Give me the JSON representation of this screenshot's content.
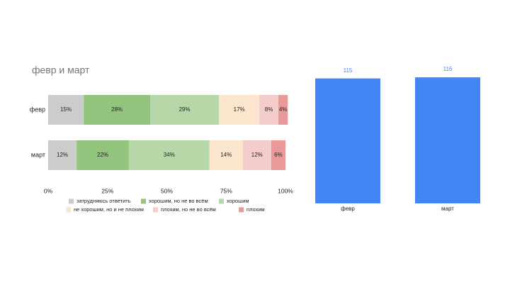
{
  "chart_data": [
    {
      "type": "stacked-barh",
      "title": "февр и март",
      "categories": [
        "февр",
        "март"
      ],
      "series": [
        {
          "name": "затрудняюсь ответить",
          "color": "#cccccc",
          "values": [
            15,
            12
          ],
          "value_labels": [
            "15%",
            "12%"
          ]
        },
        {
          "name": "хорошим, но не во всём",
          "color": "#93c47d",
          "values": [
            28,
            22
          ],
          "value_labels": [
            "28%",
            "22%"
          ]
        },
        {
          "name": "хорошим",
          "color": "#b6d7a8",
          "values": [
            29,
            34
          ],
          "value_labels": [
            "29%",
            "34%"
          ]
        },
        {
          "name": "не хорошим, но и не плохим",
          "color": "#fce5cd",
          "values": [
            17,
            14
          ],
          "value_labels": [
            "17%",
            "14%"
          ]
        },
        {
          "name": "плохим, но не во всём",
          "color": "#f4cccc",
          "values": [
            8,
            12
          ],
          "value_labels": [
            "8%",
            "12%"
          ]
        },
        {
          "name": "плохим",
          "color": "#ea9999",
          "values": [
            4,
            6
          ],
          "value_labels": [
            "4%",
            "6%"
          ]
        }
      ],
      "xlim": [
        0,
        100
      ],
      "xticks": [
        {
          "value": 0,
          "label": "0%"
        },
        {
          "value": 25,
          "label": "25%"
        },
        {
          "value": 50,
          "label": "50%"
        },
        {
          "value": 75,
          "label": "75%"
        },
        {
          "value": 100,
          "label": "100%"
        }
      ],
      "legend": "bottom"
    },
    {
      "type": "bar",
      "categories": [
        "февр",
        "март"
      ],
      "values": [
        115,
        116
      ],
      "color": "#4285f4",
      "ylim": [
        0,
        120
      ]
    }
  ]
}
